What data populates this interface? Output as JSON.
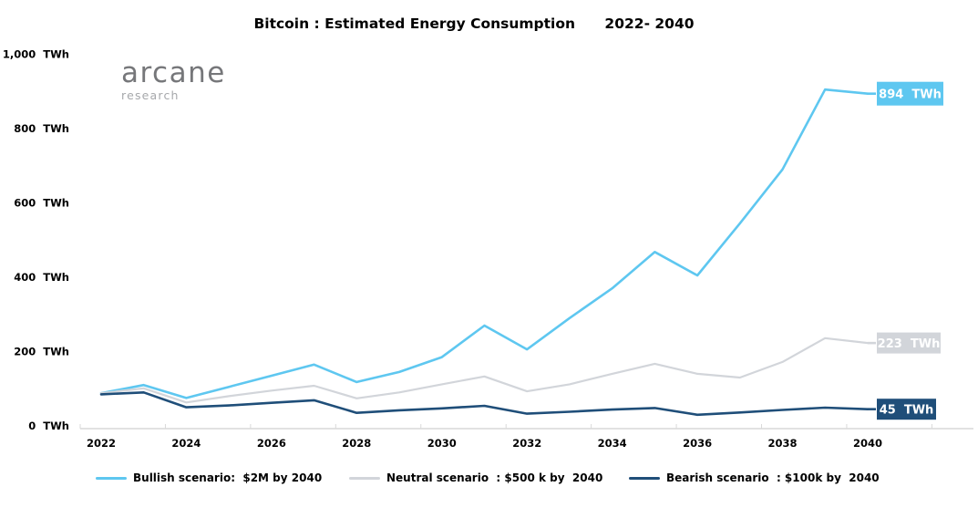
{
  "title": "Bitcoin : Estimated Energy Consumption      2022- 2040",
  "logo": {
    "name": "arcane",
    "subtitle": "research"
  },
  "chart_data": {
    "type": "line",
    "title": "Bitcoin : Estimated Energy Consumption 2022- 2040",
    "xlabel": "",
    "ylabel": "",
    "ylim": [
      0,
      1000
    ],
    "grid": false,
    "legend_position": "bottom",
    "x": [
      2022,
      2023,
      2024,
      2025,
      2026,
      2027,
      2028,
      2029,
      2030,
      2031,
      2032,
      2033,
      2034,
      2035,
      2036,
      2037,
      2038,
      2039,
      2040
    ],
    "x_tick_labels": [
      "2022",
      "2024",
      "2026",
      "2028",
      "2030",
      "2032",
      "2034",
      "2036",
      "2038",
      "2040"
    ],
    "y_ticks": [
      0,
      200,
      400,
      600,
      800,
      1000
    ],
    "y_tick_labels": [
      "0  TWh",
      "200  TWh",
      "400  TWh",
      "600  TWh",
      "800  TWh",
      "1,000  TWh"
    ],
    "series": [
      {
        "name": "Bullish scenario",
        "legend_label": "Bullish scenario:  $2M by 2040",
        "color": "#5EC7F0",
        "end_label": "894  TWh",
        "end_value": 894,
        "values": [
          88,
          110,
          75,
          105,
          135,
          165,
          118,
          145,
          185,
          270,
          206,
          290,
          370,
          468,
          405,
          545,
          690,
          905,
          894
        ]
      },
      {
        "name": "Neutral scenario",
        "legend_label": "Neutral scenario  : $500 k by  2040",
        "color": "#D2D5DA",
        "end_label": "223  TWh",
        "end_value": 223,
        "values": [
          88,
          101,
          63,
          80,
          95,
          108,
          74,
          90,
          112,
          133,
          93,
          112,
          140,
          167,
          140,
          130,
          172,
          236,
          223
        ]
      },
      {
        "name": "Bearish scenario",
        "legend_label": "Bearish scenario  : $100k by  2040",
        "color": "#1F4E79",
        "end_label": "45  TWh",
        "end_value": 45,
        "values": [
          85,
          90,
          50,
          55,
          62,
          69,
          35,
          42,
          47,
          54,
          33,
          38,
          44,
          48,
          30,
          36,
          43,
          49,
          45
        ]
      }
    ]
  }
}
